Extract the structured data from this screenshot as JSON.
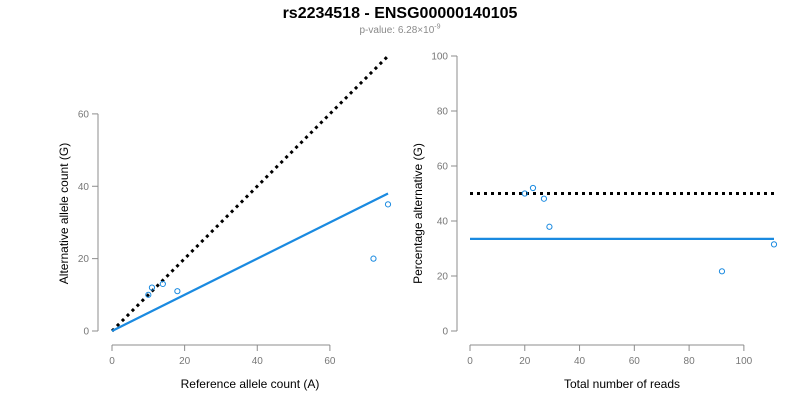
{
  "header": {
    "title": "rs2234518 - ENSG00000140105",
    "pvalue_prefix": "p-value: 6.28×10",
    "pvalue_exp": "-9"
  },
  "colors": {
    "points": "#1a8ae0",
    "fit": "#1a8ae0",
    "reference": "#000000",
    "axis": "#8c8c8c"
  },
  "chart_data": [
    {
      "type": "scatter",
      "title": "",
      "xlabel": "Reference allele count (A)",
      "ylabel": "Alternative allele count (G)",
      "xlim": [
        0,
        76
      ],
      "ylim": [
        0,
        76
      ],
      "xticks": [
        0,
        20,
        40,
        60
      ],
      "yticks": [
        0,
        20,
        40,
        60
      ],
      "points": [
        {
          "x": 10,
          "y": 10
        },
        {
          "x": 11,
          "y": 12
        },
        {
          "x": 14,
          "y": 13
        },
        {
          "x": 18,
          "y": 11
        },
        {
          "x": 72,
          "y": 20
        },
        {
          "x": 76,
          "y": 35
        }
      ],
      "lines": [
        {
          "name": "expected (1:1)",
          "style": "dotted",
          "from": [
            0,
            0
          ],
          "to": [
            76,
            76
          ]
        },
        {
          "name": "fit",
          "style": "solid",
          "from": [
            0,
            0
          ],
          "to": [
            76,
            38
          ]
        }
      ]
    },
    {
      "type": "scatter",
      "title": "",
      "xlabel": "Total number of reads",
      "ylabel": "Percentage alternative (G)",
      "xlim": [
        0,
        111
      ],
      "ylim": [
        0,
        100
      ],
      "xticks": [
        0,
        20,
        40,
        60,
        80,
        100
      ],
      "yticks": [
        0,
        20,
        40,
        60,
        80,
        100
      ],
      "points": [
        {
          "x": 20,
          "y": 50
        },
        {
          "x": 23,
          "y": 52
        },
        {
          "x": 27,
          "y": 48.1
        },
        {
          "x": 29,
          "y": 37.9
        },
        {
          "x": 92,
          "y": 21.7
        },
        {
          "x": 111,
          "y": 31.5
        }
      ],
      "lines": [
        {
          "name": "expected (50%)",
          "style": "dotted",
          "from": [
            0,
            50
          ],
          "to": [
            111,
            50
          ]
        },
        {
          "name": "fit",
          "style": "solid",
          "from": [
            0,
            33.5
          ],
          "to": [
            111,
            33.5
          ]
        }
      ]
    }
  ]
}
